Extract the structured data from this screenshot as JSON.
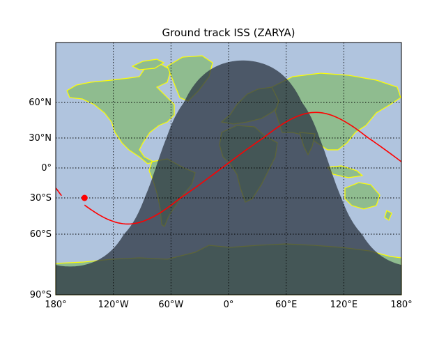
{
  "title": "Ground track ISS (ZARYA)",
  "map": {
    "lon_range": [
      -180,
      180
    ],
    "lat_ticks": [
      {
        "lat": 60,
        "label": "60°N"
      },
      {
        "lat": 30,
        "label": "30°N"
      },
      {
        "lat": 0,
        "label": "0°"
      },
      {
        "lat": -30,
        "label": "30°S"
      },
      {
        "lat": -60,
        "label": "60°S"
      },
      {
        "lat": -90,
        "label": "90°S"
      }
    ],
    "lon_ticks": [
      {
        "lon": -180,
        "label": "180°"
      },
      {
        "lon": -120,
        "label": "120°W"
      },
      {
        "lon": -60,
        "label": "60°W"
      },
      {
        "lon": 0,
        "label": "0°"
      },
      {
        "lon": 60,
        "label": "60°E"
      },
      {
        "lon": 120,
        "label": "120°E"
      },
      {
        "lon": 180,
        "label": "180°"
      }
    ],
    "grid": "dotted",
    "colors": {
      "ocean": "#b0c4de",
      "land": "#8fbc8f",
      "coastline": "#ffff00",
      "night_shade": "#2f3a47",
      "track": "#ff0000",
      "position": "#ff0000"
    },
    "track": {
      "inclination_deg": 51.6,
      "ascending_node_lon": -7,
      "points_step": 2
    },
    "current_position": {
      "lon": -150,
      "lat": -30
    },
    "terminator": {
      "subsolar_lon": 15,
      "subsolar_lat": -22
    }
  }
}
